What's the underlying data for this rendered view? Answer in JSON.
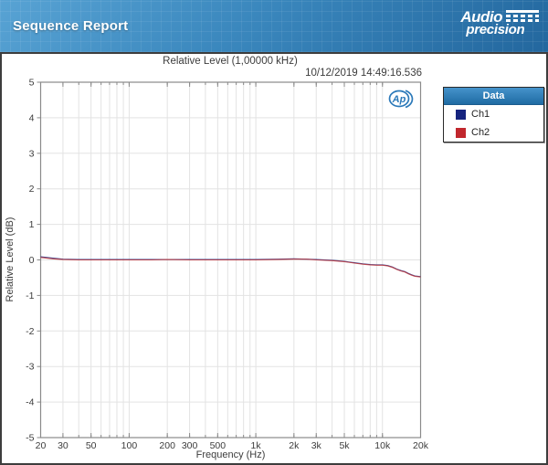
{
  "header": {
    "title": "Sequence Report",
    "logo": {
      "line1": "Audio",
      "line2": "precision"
    }
  },
  "chart_data": {
    "type": "line",
    "title": "Relative Level (1,00000 kHz)",
    "timestamp": "10/12/2019 14:49:16.536",
    "xlabel": "Frequency (Hz)",
    "ylabel": "Relative Level (dB)",
    "x_scale": "log",
    "xlim": [
      20,
      20000
    ],
    "ylim": [
      -5,
      5
    ],
    "grid": true,
    "legend_position": "outside-right",
    "x_ticks": [
      {
        "f": 20,
        "label": "20"
      },
      {
        "f": 30,
        "label": "30"
      },
      {
        "f": 50,
        "label": "50"
      },
      {
        "f": 100,
        "label": "100"
      },
      {
        "f": 200,
        "label": "200"
      },
      {
        "f": 300,
        "label": "300"
      },
      {
        "f": 500,
        "label": "500"
      },
      {
        "f": 1000,
        "label": "1k"
      },
      {
        "f": 2000,
        "label": "2k"
      },
      {
        "f": 3000,
        "label": "3k"
      },
      {
        "f": 5000,
        "label": "5k"
      },
      {
        "f": 10000,
        "label": "10k"
      },
      {
        "f": 20000,
        "label": "20k"
      }
    ],
    "y_ticks": [
      {
        "v": 5,
        "label": "5"
      },
      {
        "v": 4,
        "label": "4"
      },
      {
        "v": 3,
        "label": "3"
      },
      {
        "v": 2,
        "label": "2"
      },
      {
        "v": 1,
        "label": "1"
      },
      {
        "v": 0,
        "label": "0"
      },
      {
        "v": -1,
        "label": "-1"
      },
      {
        "v": -2,
        "label": "-2"
      },
      {
        "v": -3,
        "label": "-3"
      },
      {
        "v": -4,
        "label": "-4"
      },
      {
        "v": -5,
        "label": "-5"
      }
    ],
    "x": [
      20,
      25,
      30,
      40,
      50,
      70,
      100,
      150,
      200,
      300,
      500,
      700,
      1000,
      1500,
      2000,
      2500,
      3000,
      4000,
      5000,
      6000,
      7000,
      8000,
      9000,
      10000,
      11000,
      12000,
      13000,
      14000,
      15000,
      16000,
      17000,
      18000,
      20000
    ],
    "series": [
      {
        "name": "Ch1",
        "color": "#16247f",
        "values": [
          0.09,
          0.05,
          0.02,
          0.01,
          0.01,
          0.01,
          0.01,
          0.01,
          0.01,
          0.01,
          0.01,
          0.01,
          0.01,
          0.02,
          0.03,
          0.02,
          0.01,
          -0.01,
          -0.04,
          -0.08,
          -0.11,
          -0.13,
          -0.14,
          -0.14,
          -0.16,
          -0.2,
          -0.26,
          -0.3,
          -0.33,
          -0.38,
          -0.42,
          -0.45,
          -0.47
        ]
      },
      {
        "name": "Ch2",
        "color": "#bf383c",
        "values": [
          0.07,
          0.03,
          0.01,
          0.0,
          0.0,
          0.0,
          0.0,
          0.0,
          0.01,
          0.0,
          0.0,
          0.0,
          0.0,
          0.01,
          0.02,
          0.02,
          0.0,
          -0.02,
          -0.05,
          -0.09,
          -0.12,
          -0.14,
          -0.15,
          -0.15,
          -0.17,
          -0.21,
          -0.27,
          -0.31,
          -0.34,
          -0.39,
          -0.43,
          -0.46,
          -0.48
        ]
      }
    ]
  },
  "legend": {
    "title": "Data",
    "items": [
      {
        "label": "Ch1",
        "color": "#16247f"
      },
      {
        "label": "Ch2",
        "color": "#c1272d"
      }
    ]
  },
  "colors": {
    "header_blue_top": "#58a3d4",
    "header_blue_bottom": "#23679e",
    "legend_header_top": "#4593cb",
    "legend_header_bottom": "#1f6ba3",
    "plot_frame": "#8a8a8a",
    "grid_line": "#e3e3e3",
    "ap_logo_blue": "#2b79b9"
  }
}
